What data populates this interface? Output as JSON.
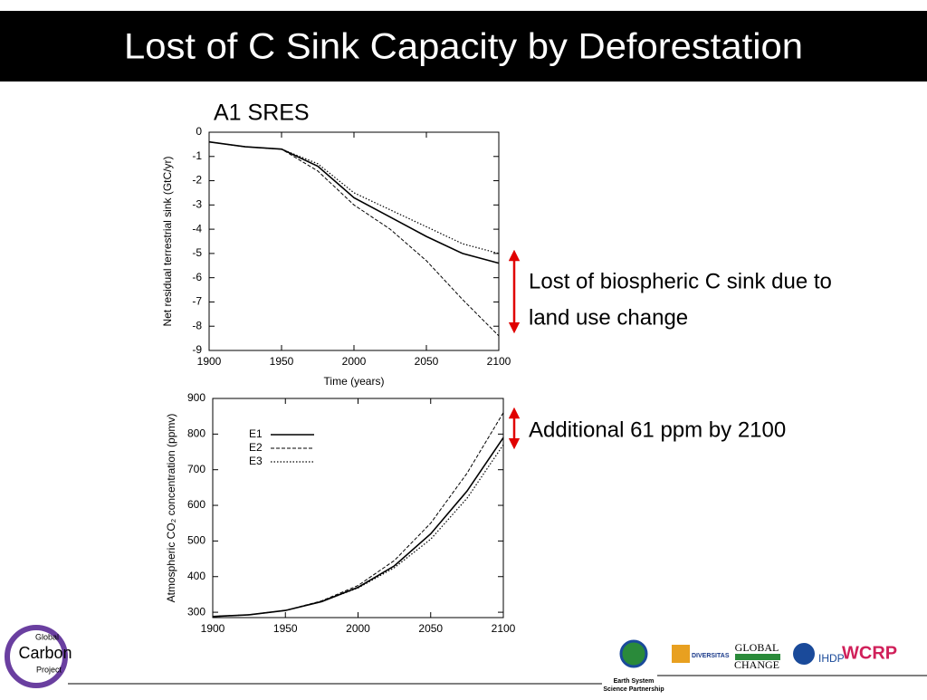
{
  "slide": {
    "title": "Lost of C Sink Capacity by Deforestation",
    "subtitle": "A1 SRES",
    "annotations": [
      "Lost of biospheric C sink due to",
      "land use change",
      "Additional 61 ppm by 2100"
    ],
    "logos": [
      "Global",
      "Carbon",
      "Project",
      "Earth System",
      "Science Partnership",
      "DIVERSITAS",
      "GLOBAL",
      "CHANGE",
      "IHDP",
      "WCRP"
    ]
  },
  "chart_data": [
    {
      "type": "line",
      "xlabel": "Time (years)",
      "ylabel": "Net residual terrestrial sink (GtC/yr)",
      "x": [
        1900,
        1925,
        1950,
        1975,
        2000,
        2025,
        2050,
        2075,
        2100
      ],
      "series": [
        {
          "color": "#000000",
          "dash": "solid",
          "values": [
            -0.4,
            -0.6,
            -0.7,
            -1.4,
            -2.7,
            -3.5,
            -4.3,
            -5.0,
            -5.4
          ]
        },
        {
          "color": "#000000",
          "dash": "dashed",
          "values": [
            -0.4,
            -0.6,
            -0.7,
            -1.6,
            -3.0,
            -4.0,
            -5.3,
            -6.9,
            -8.4
          ]
        },
        {
          "color": "#000000",
          "dash": "dotted",
          "values": [
            -0.4,
            -0.6,
            -0.7,
            -1.3,
            -2.5,
            -3.2,
            -3.9,
            -4.6,
            -5.0
          ]
        }
      ],
      "xlim": [
        1900,
        2100
      ],
      "xticks": [
        1900,
        1950,
        2000,
        2050,
        2100
      ],
      "ylim": [
        -9,
        0
      ],
      "yticks": [
        0,
        -1,
        -2,
        -3,
        -4,
        -5,
        -6,
        -7,
        -8,
        -9
      ]
    },
    {
      "type": "line",
      "ylabel": "Atmospheric CO₂ concentration (ppmv)",
      "legend": "upper left",
      "x": [
        1900,
        1925,
        1950,
        1975,
        2000,
        2025,
        2050,
        2075,
        2100
      ],
      "series": [
        {
          "name": "E1",
          "color": "#000000",
          "dash": "solid",
          "values": [
            288,
            293,
            305,
            330,
            370,
            430,
            520,
            640,
            790
          ]
        },
        {
          "name": "E2",
          "color": "#000000",
          "dash": "dashed",
          "values": [
            288,
            293,
            305,
            332,
            375,
            445,
            550,
            690,
            860
          ]
        },
        {
          "name": "E3",
          "color": "#000000",
          "dash": "dotted",
          "values": [
            288,
            293,
            305,
            330,
            368,
            425,
            505,
            620,
            770
          ]
        }
      ],
      "xlim": [
        1900,
        2100
      ],
      "xticks": [
        1900,
        1950,
        2000,
        2050,
        2100
      ],
      "ylim": [
        285,
        900
      ],
      "yticks": [
        300,
        400,
        500,
        600,
        700,
        800,
        900
      ]
    }
  ]
}
